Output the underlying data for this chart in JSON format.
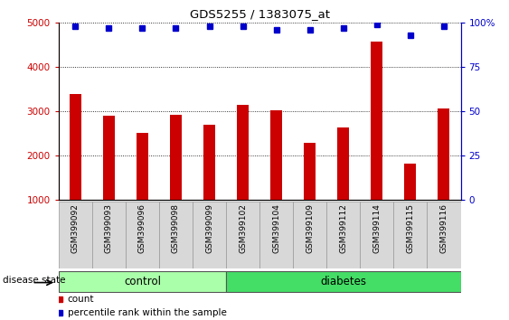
{
  "title": "GDS5255 / 1383075_at",
  "samples": [
    "GSM399092",
    "GSM399093",
    "GSM399096",
    "GSM399098",
    "GSM399099",
    "GSM399102",
    "GSM399104",
    "GSM399109",
    "GSM399112",
    "GSM399114",
    "GSM399115",
    "GSM399116"
  ],
  "counts": [
    3380,
    2900,
    2520,
    2920,
    2700,
    3150,
    3030,
    2280,
    2640,
    4560,
    1820,
    3060
  ],
  "percentile_ranks": [
    98,
    97,
    97,
    97,
    98,
    98,
    96,
    96,
    97,
    99,
    93,
    98
  ],
  "bar_color": "#cc0000",
  "dot_color": "#0000cc",
  "ylim_left": [
    1000,
    5000
  ],
  "ylim_right": [
    0,
    100
  ],
  "yticks_left": [
    1000,
    2000,
    3000,
    4000,
    5000
  ],
  "yticks_right": [
    0,
    25,
    50,
    75,
    100
  ],
  "control_label": "control",
  "diabetes_label": "diabetes",
  "control_color": "#aaffaa",
  "diabetes_color": "#44dd66",
  "group_label": "disease state",
  "legend_count": "count",
  "legend_percentile": "percentile rank within the sample",
  "bar_color_red": "#cc0000",
  "dot_color_blue": "#0000cc",
  "background_color": "#d8d8d8",
  "bar_width": 0.35,
  "n_control": 5,
  "n_diabetes": 7
}
